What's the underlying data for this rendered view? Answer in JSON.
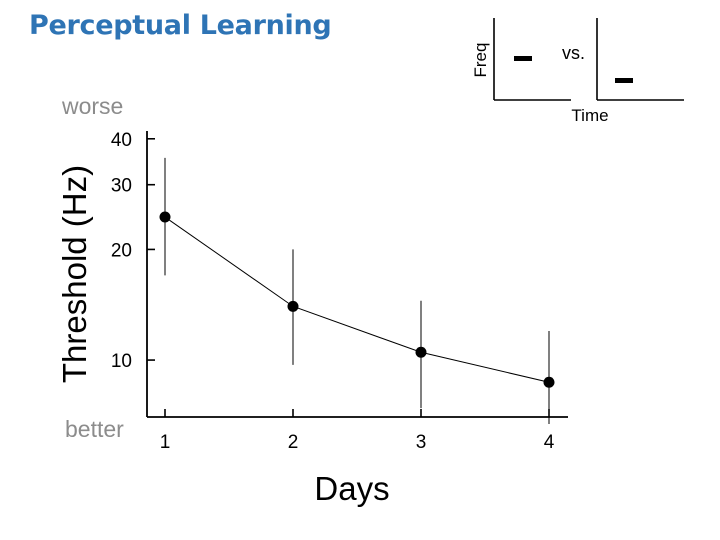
{
  "slide": {
    "title": "Perceptual Learning",
    "worse_label": "worse",
    "better_label": "better"
  },
  "inset": {
    "ylabel": "Freq",
    "xlabel": "Time",
    "comparison_label": "vs."
  },
  "chart_data": {
    "type": "line",
    "title": "",
    "xlabel": "Days",
    "ylabel": "Threshold (Hz)",
    "y_scale": "log",
    "ylim": [
      7,
      42
    ],
    "xlim": [
      0.9,
      4.15
    ],
    "x": [
      1,
      2,
      3,
      4
    ],
    "x_tick_labels": [
      "1",
      "2",
      "3",
      "4"
    ],
    "y_ticks": [
      10,
      20,
      30,
      40
    ],
    "y_tick_labels": [
      "10",
      "20",
      "30",
      "40"
    ],
    "series": [
      {
        "values": [
          24.5,
          14.0,
          10.5,
          8.7
        ],
        "error_low": [
          17.0,
          9.7,
          7.4,
          6.7
        ],
        "error_high": [
          35.5,
          20.0,
          14.5,
          12.0
        ],
        "color": "#000000"
      }
    ],
    "grid": false
  }
}
